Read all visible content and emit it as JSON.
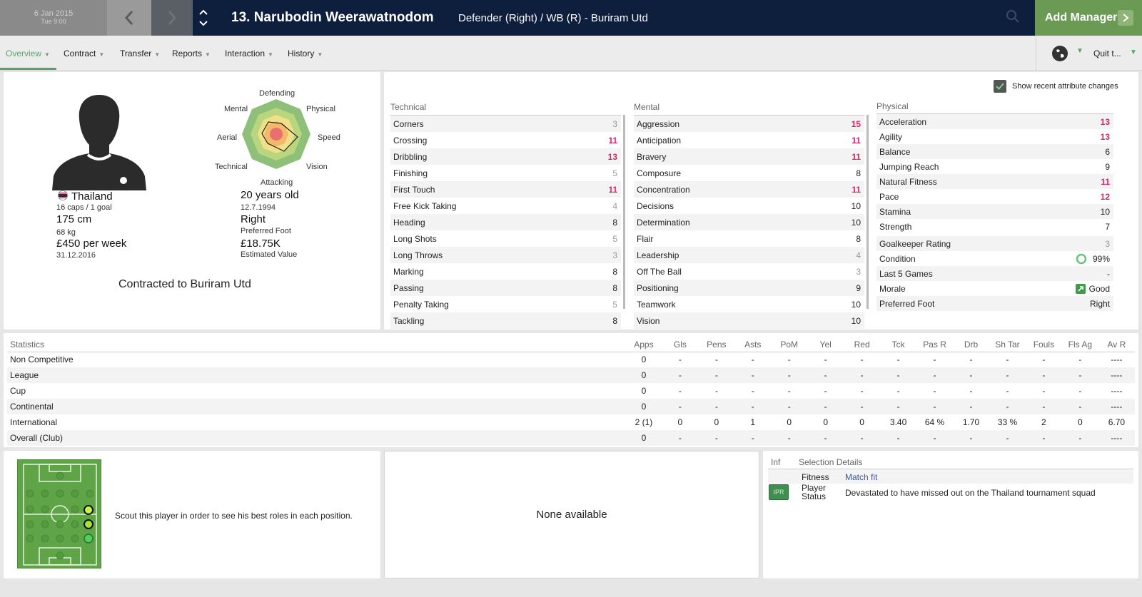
{
  "topbar": {
    "date": "6 Jan 2015",
    "time": "Tue 9:00",
    "title": "13. Narubodin Weerawatnodom",
    "subtitle": "Defender (Right) / WB (R) - Buriram Utd",
    "add_manager": "Add Manager"
  },
  "tabs": [
    {
      "label": "Overview"
    },
    {
      "label": "Contract"
    },
    {
      "label": "Transfer"
    },
    {
      "label": "Reports"
    },
    {
      "label": "Interaction"
    },
    {
      "label": "History"
    }
  ],
  "quit_label": "Quit t...",
  "profile": {
    "nation": "Thailand",
    "caps": "16 caps / 1 goal",
    "height": "175 cm",
    "weight": "68 kg",
    "wage": "£450 per week",
    "contract_end": "31.12.2016",
    "age": "20 years old",
    "dob": "12.7.1994",
    "foot": "Right",
    "foot_label": "Preferred Foot",
    "value": "£18.75K",
    "value_label": "Estimated Value",
    "contract_text": "Contracted to Buriram Utd",
    "radar_labels": {
      "defending": "Defending",
      "physical": "Physical",
      "speed": "Speed",
      "vision": "Vision",
      "attacking": "Attacking",
      "technical": "Technical",
      "aerial": "Aerial",
      "mental": "Mental"
    }
  },
  "attributes": {
    "show_changes": "Show recent attribute changes",
    "technical_title": "Technical",
    "mental_title": "Mental",
    "physical_title": "Physical",
    "technical": [
      {
        "name": "Corners",
        "value": "3"
      },
      {
        "name": "Crossing",
        "value": "11"
      },
      {
        "name": "Dribbling",
        "value": "13"
      },
      {
        "name": "Finishing",
        "value": "5"
      },
      {
        "name": "First Touch",
        "value": "11"
      },
      {
        "name": "Free Kick Taking",
        "value": "4"
      },
      {
        "name": "Heading",
        "value": "8"
      },
      {
        "name": "Long Shots",
        "value": "5"
      },
      {
        "name": "Long Throws",
        "value": "3"
      },
      {
        "name": "Marking",
        "value": "8"
      },
      {
        "name": "Passing",
        "value": "8"
      },
      {
        "name": "Penalty Taking",
        "value": "5"
      },
      {
        "name": "Tackling",
        "value": "8"
      }
    ],
    "mental": [
      {
        "name": "Aggression",
        "value": "15"
      },
      {
        "name": "Anticipation",
        "value": "11"
      },
      {
        "name": "Bravery",
        "value": "11"
      },
      {
        "name": "Composure",
        "value": "8"
      },
      {
        "name": "Concentration",
        "value": "11"
      },
      {
        "name": "Decisions",
        "value": "10"
      },
      {
        "name": "Determination",
        "value": "10"
      },
      {
        "name": "Flair",
        "value": "8"
      },
      {
        "name": "Leadership",
        "value": "4"
      },
      {
        "name": "Off The Ball",
        "value": "3"
      },
      {
        "name": "Positioning",
        "value": "9"
      },
      {
        "name": "Teamwork",
        "value": "10"
      },
      {
        "name": "Vision",
        "value": "10"
      }
    ],
    "physical": [
      {
        "name": "Acceleration",
        "value": "13"
      },
      {
        "name": "Agility",
        "value": "13"
      },
      {
        "name": "Balance",
        "value": "6"
      },
      {
        "name": "Jumping Reach",
        "value": "9"
      },
      {
        "name": "Natural Fitness",
        "value": "11"
      },
      {
        "name": "Pace",
        "value": "12"
      },
      {
        "name": "Stamina",
        "value": "10"
      },
      {
        "name": "Strength",
        "value": "7"
      }
    ],
    "extra": [
      {
        "name": "Goalkeeper Rating",
        "value": "3"
      },
      {
        "name": "Condition",
        "value": "99%"
      },
      {
        "name": "Last 5 Games",
        "value": "-"
      },
      {
        "name": "Morale",
        "value": "Good"
      },
      {
        "name": "Preferred Foot",
        "value": "Right"
      }
    ]
  },
  "statistics": {
    "headers": [
      "Statistics",
      "Apps",
      "Gls",
      "Pens",
      "Asts",
      "PoM",
      "Yel",
      "Red",
      "Tck",
      "Pas R",
      "Drb",
      "Sh Tar",
      "Fouls",
      "Fls Ag",
      "Av R"
    ],
    "rows": [
      [
        "Non Competitive",
        "0",
        "-",
        "-",
        "-",
        "-",
        "-",
        "-",
        "-",
        "-",
        "-",
        "-",
        "-",
        "-",
        "----"
      ],
      [
        "League",
        "0",
        "-",
        "-",
        "-",
        "-",
        "-",
        "-",
        "-",
        "-",
        "-",
        "-",
        "-",
        "-",
        "----"
      ],
      [
        "Cup",
        "0",
        "-",
        "-",
        "-",
        "-",
        "-",
        "-",
        "-",
        "-",
        "-",
        "-",
        "-",
        "-",
        "----"
      ],
      [
        "Continental",
        "0",
        "-",
        "-",
        "-",
        "-",
        "-",
        "-",
        "-",
        "-",
        "-",
        "-",
        "-",
        "-",
        "----"
      ],
      [
        "International",
        "2 (1)",
        "0",
        "0",
        "1",
        "0",
        "0",
        "0",
        "3.40",
        "64 %",
        "1.70",
        "33 %",
        "2",
        "0",
        "6.70"
      ],
      [
        "Overall (Club)",
        "0",
        "-",
        "-",
        "-",
        "-",
        "-",
        "-",
        "-",
        "-",
        "-",
        "-",
        "-",
        "-",
        "----"
      ]
    ]
  },
  "scout_text": "Scout this player in order to see his best roles in each position.",
  "none_available": "None available",
  "selection": {
    "inf_label": "Inf",
    "title": "Selection Details",
    "fitness_label": "Fitness",
    "fitness_value": "Match fit",
    "badge": "IPR",
    "status_label_1": "Player",
    "status_label_2": "Status",
    "status_value": "Devastated to have missed out on the Thailand tournament squad"
  },
  "colors": {
    "accent": "#58a26a",
    "topbar": "#0d1f3c",
    "highlight": "#d8246b",
    "pitch": "#5fa548"
  }
}
